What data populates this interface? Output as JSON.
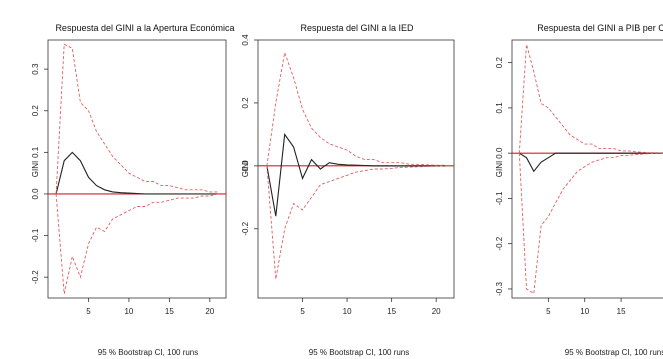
{
  "chart_data": [
    {
      "type": "line",
      "title": "Respuesta del GINI a la Apertura Económica",
      "ylabel": "GINI",
      "footer": "95 % Bootstrap CI, 100 runs",
      "xlim": [
        0,
        22
      ],
      "ylim": [
        -0.25,
        0.37
      ],
      "xticks": [
        "5",
        "10",
        "15",
        "20"
      ],
      "yticks": [
        "-0.2",
        "-0.1",
        "0.0",
        "0.1",
        "0.2",
        "0.3"
      ],
      "colors": {
        "response": "#222222",
        "band": "#e06060",
        "zero": "#d42020"
      },
      "x": [
        1,
        2,
        3,
        4,
        5,
        6,
        7,
        8,
        9,
        10,
        11,
        12,
        13,
        14,
        15,
        16,
        17,
        18,
        19,
        20,
        21
      ],
      "series": [
        {
          "values": [
            0.0,
            0.08,
            0.1,
            0.08,
            0.04,
            0.02,
            0.01,
            0.005,
            0.003,
            0.002,
            0.001,
            0.0,
            0.0,
            0.0,
            0.0,
            0.0,
            0.0,
            0.0,
            0.0,
            0.0,
            0.0
          ]
        },
        {
          "values": [
            0.0,
            0.36,
            0.35,
            0.22,
            0.2,
            0.15,
            0.12,
            0.09,
            0.07,
            0.05,
            0.04,
            0.03,
            0.03,
            0.02,
            0.02,
            0.015,
            0.01,
            0.01,
            0.01,
            0.005,
            0.005
          ]
        },
        {
          "values": [
            0.0,
            -0.24,
            -0.15,
            -0.2,
            -0.12,
            -0.08,
            -0.09,
            -0.06,
            -0.05,
            -0.04,
            -0.03,
            -0.03,
            -0.02,
            -0.02,
            -0.015,
            -0.01,
            -0.01,
            -0.01,
            -0.005,
            -0.005,
            0.0
          ]
        }
      ]
    },
    {
      "type": "line",
      "title": "Respuesta del GINI a la IED",
      "ylabel": "GINI",
      "footer": "95 % Bootstrap CI, 100 runs",
      "xlim": [
        0,
        22
      ],
      "ylim": [
        -0.42,
        0.4
      ],
      "xticks": [
        "5",
        "10",
        "15",
        "20"
      ],
      "yticks": [
        "-0.2",
        "0.0",
        "0.2",
        "0.4"
      ],
      "colors": {
        "response": "#222222",
        "band": "#e06060",
        "zero": "#d42020"
      },
      "x": [
        1,
        2,
        3,
        4,
        5,
        6,
        7,
        8,
        9,
        10,
        11,
        12,
        13,
        14,
        15,
        16,
        17,
        18,
        19,
        20,
        21
      ],
      "series": [
        {
          "values": [
            0.0,
            -0.16,
            0.1,
            0.06,
            -0.04,
            0.02,
            -0.01,
            0.01,
            0.005,
            0.003,
            0.002,
            0.001,
            0.0,
            0.0,
            0.0,
            0.0,
            0.0,
            0.0,
            0.0,
            0.0,
            0.0
          ]
        },
        {
          "values": [
            0.0,
            0.2,
            0.36,
            0.28,
            0.18,
            0.12,
            0.09,
            0.07,
            0.06,
            0.05,
            0.03,
            0.02,
            0.02,
            0.01,
            0.01,
            0.01,
            0.005,
            0.005,
            0.003,
            0.002,
            0.002
          ]
        },
        {
          "values": [
            0.0,
            -0.36,
            -0.2,
            -0.12,
            -0.14,
            -0.1,
            -0.06,
            -0.05,
            -0.04,
            -0.03,
            -0.02,
            -0.015,
            -0.01,
            -0.01,
            -0.008,
            -0.005,
            -0.004,
            -0.003,
            -0.002,
            -0.001,
            0.0
          ]
        }
      ]
    },
    {
      "type": "line",
      "title": "Respuesta del GINI a PIB per Cap",
      "ylabel": "GINI",
      "footer": "95 % Bootstrap CI, 100 runs",
      "xlim": [
        0,
        22
      ],
      "ylim": [
        -0.32,
        0.25
      ],
      "xticks": [
        "5",
        "10",
        "15"
      ],
      "yticks": [
        "-0.3",
        "-0.2",
        "-0.1",
        "0.0",
        "0.1",
        "0.2"
      ],
      "colors": {
        "response": "#222222",
        "band": "#e06060",
        "zero": "#d42020"
      },
      "x": [
        1,
        2,
        3,
        4,
        5,
        6,
        7,
        8,
        9,
        10,
        11,
        12,
        13,
        14,
        15,
        16,
        17,
        18,
        19,
        20,
        21
      ],
      "series": [
        {
          "values": [
            0.0,
            -0.01,
            -0.04,
            -0.02,
            -0.01,
            0.0,
            0.0,
            0.0,
            0.0,
            0.0,
            0.0,
            0.0,
            0.0,
            0.0,
            0.0,
            0.0,
            0.0,
            0.0,
            0.0,
            0.0,
            0.0
          ]
        },
        {
          "values": [
            0.0,
            0.24,
            0.18,
            0.11,
            0.1,
            0.08,
            0.06,
            0.04,
            0.03,
            0.02,
            0.02,
            0.01,
            0.01,
            0.01,
            0.005,
            0.005,
            0.003,
            0.002,
            0.001,
            0.001,
            0.0
          ]
        },
        {
          "values": [
            0.0,
            -0.3,
            -0.31,
            -0.16,
            -0.14,
            -0.11,
            -0.08,
            -0.06,
            -0.04,
            -0.03,
            -0.02,
            -0.015,
            -0.01,
            -0.01,
            -0.005,
            -0.005,
            -0.003,
            -0.002,
            -0.001,
            -0.001,
            0.0
          ]
        }
      ]
    }
  ]
}
